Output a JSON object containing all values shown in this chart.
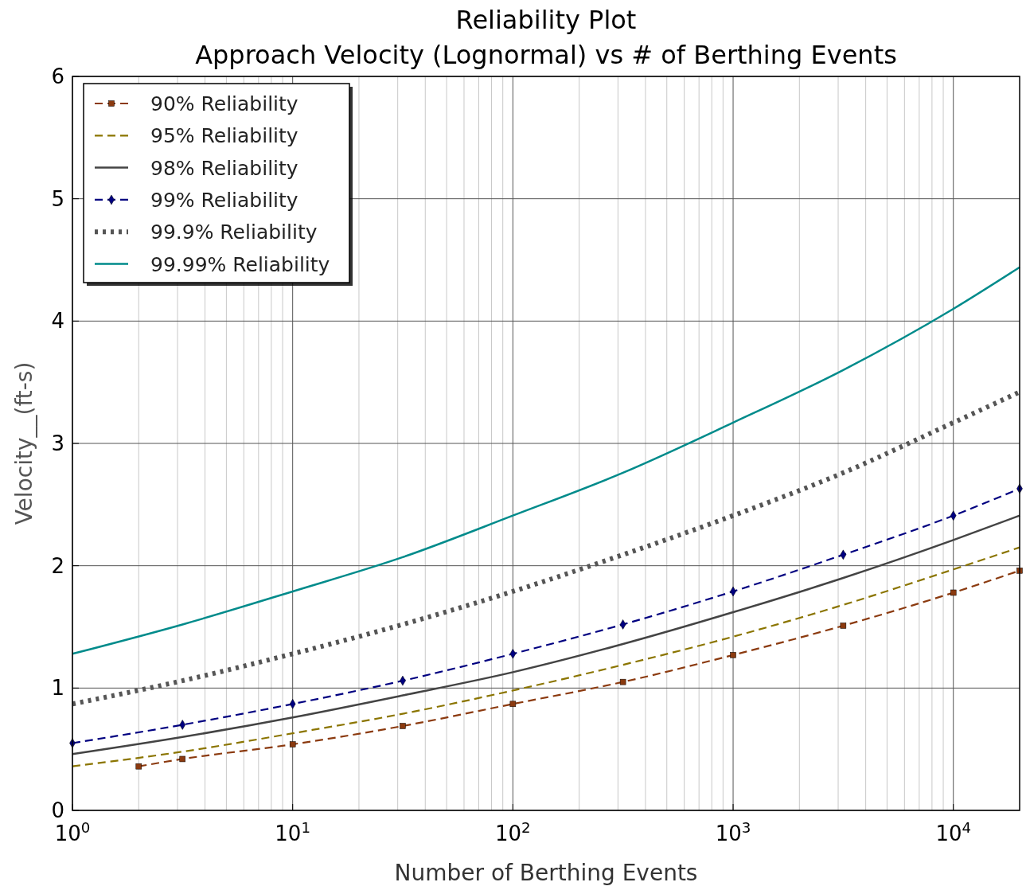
{
  "chart_data": {
    "type": "line",
    "title": "Reliability Plot",
    "subtitle": "Approach Velocity (Lognormal) vs # of Berthing Events",
    "xlabel": "Number of Berthing Events",
    "ylabel": "Velocity__(ft-s)",
    "log": "x",
    "xlim": [
      1,
      20000
    ],
    "ylim": [
      0,
      6
    ],
    "xticks": [
      {
        "value": 1,
        "label": "10$^{0}$"
      },
      {
        "value": 10,
        "label": "10$^{1}$"
      },
      {
        "value": 100,
        "label": "10$^{2}$"
      },
      {
        "value": 1000,
        "label": "10$^{3}$"
      },
      {
        "value": 10000,
        "label": "10$^{4}$"
      }
    ],
    "yticks": [
      0,
      1,
      2,
      3,
      4,
      5,
      6
    ],
    "grid": true,
    "legend": "top left",
    "series": [
      {
        "name": "90% Reliability",
        "color": "#8b3a0f",
        "line_style": "dashed",
        "marker": "square",
        "x": [
          2,
          3.16,
          10,
          31.6,
          100,
          316,
          1000,
          3162,
          10000,
          20000
        ],
        "values": [
          0.36,
          0.42,
          0.54,
          0.69,
          0.87,
          1.05,
          1.27,
          1.51,
          1.78,
          1.96
        ]
      },
      {
        "name": "95% Reliability",
        "color": "#8b7500",
        "line_style": "dashed",
        "marker": "none",
        "x": [
          1,
          3.16,
          10,
          31.6,
          100,
          316,
          1000,
          3162,
          10000,
          20000
        ],
        "values": [
          0.36,
          0.48,
          0.63,
          0.79,
          0.98,
          1.19,
          1.42,
          1.68,
          1.97,
          2.15
        ]
      },
      {
        "name": "98% Reliability",
        "color": "#444444",
        "line_style": "solid",
        "marker": "none",
        "x": [
          1,
          3.16,
          10,
          31.6,
          100,
          316,
          1000,
          3162,
          10000,
          20000
        ],
        "values": [
          0.46,
          0.6,
          0.76,
          0.94,
          1.13,
          1.36,
          1.62,
          1.9,
          2.21,
          2.41
        ]
      },
      {
        "name": "99% Reliability",
        "color": "#000080",
        "line_style": "dashed",
        "marker": "diamond",
        "x": [
          1,
          3.16,
          10,
          31.6,
          100,
          316,
          1000,
          3162,
          10000,
          20000
        ],
        "values": [
          0.55,
          0.7,
          0.87,
          1.06,
          1.28,
          1.52,
          1.79,
          2.09,
          2.41,
          2.63
        ]
      },
      {
        "name": "99.9% Reliability",
        "color": "#555555",
        "line_style": "dotted",
        "marker": "none",
        "x": [
          1,
          3.16,
          10,
          31.6,
          100,
          316,
          1000,
          3162,
          10000,
          20000
        ],
        "values": [
          0.87,
          1.06,
          1.28,
          1.52,
          1.79,
          2.09,
          2.41,
          2.76,
          3.17,
          3.42
        ]
      },
      {
        "name": "99.99% Reliability",
        "color": "#008b8b",
        "line_style": "solid",
        "marker": "none",
        "x": [
          1,
          3.16,
          10,
          31.6,
          100,
          316,
          1000,
          3162,
          10000,
          20000
        ],
        "values": [
          1.28,
          1.52,
          1.79,
          2.07,
          2.41,
          2.76,
          3.17,
          3.6,
          4.1,
          4.44
        ]
      }
    ]
  }
}
